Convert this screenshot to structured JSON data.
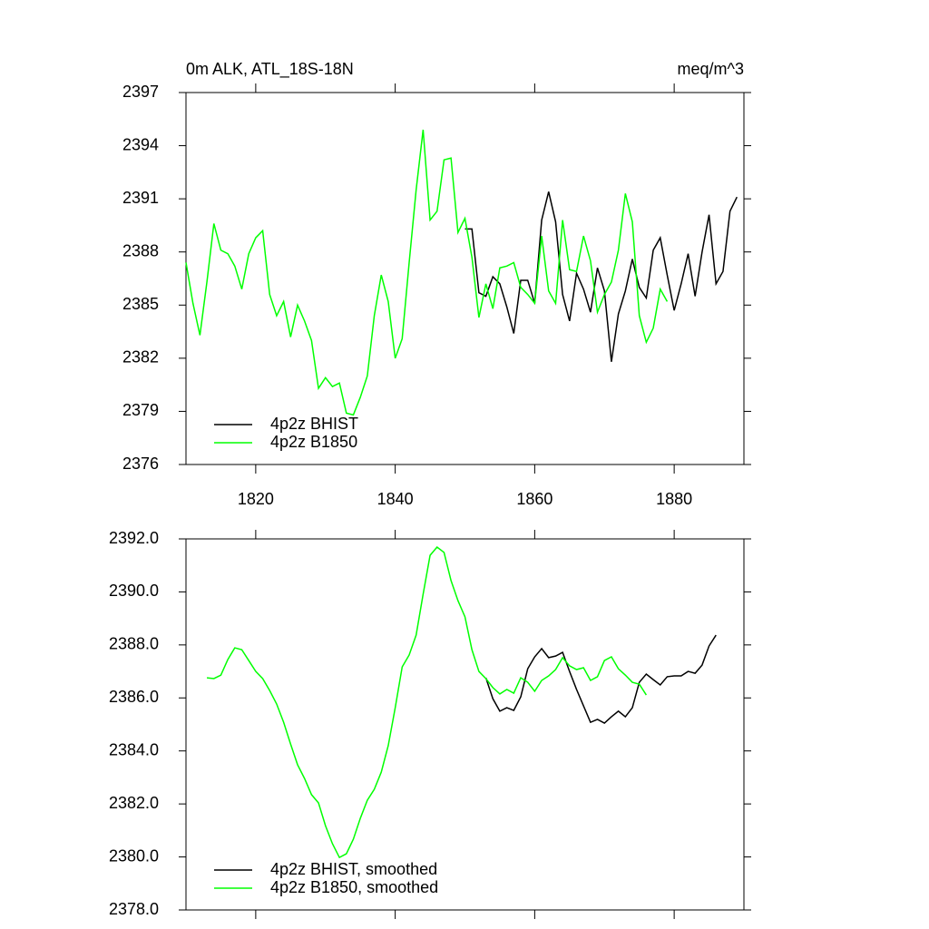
{
  "chart_data": [
    {
      "type": "line",
      "title": "0m ALK, ATL_18S-18N",
      "units_label": "meq/m^3",
      "xlim": [
        1810,
        1890
      ],
      "xticks": [
        1820,
        1840,
        1860,
        1880
      ],
      "ylim": [
        2376,
        2397
      ],
      "yticks": [
        2376,
        2379,
        2382,
        2385,
        2388,
        2391,
        2394,
        2397
      ],
      "series": [
        {
          "name": "4p2z BHIST",
          "color": "#000000",
          "x": [
            1850,
            1851,
            1852,
            1853,
            1854,
            1855,
            1856,
            1857,
            1858,
            1859,
            1860,
            1861,
            1862,
            1863,
            1864,
            1865,
            1866,
            1867,
            1868,
            1869,
            1870,
            1871,
            1872,
            1873,
            1874,
            1875,
            1876,
            1877,
            1878,
            1879,
            1880,
            1881,
            1882,
            1883,
            1884,
            1885,
            1886,
            1887,
            1888,
            1889
          ],
          "values": [
            2389.3,
            2389.3,
            2385.7,
            2385.5,
            2386.6,
            2386.2,
            2384.9,
            2383.4,
            2386.4,
            2386.4,
            2385.1,
            2389.8,
            2391.4,
            2389.7,
            2385.6,
            2384.1,
            2386.8,
            2385.9,
            2384.6,
            2387.1,
            2385.8,
            2381.8,
            2384.5,
            2385.8,
            2387.6,
            2386.0,
            2385.4,
            2388.1,
            2388.8,
            2386.7,
            2384.7,
            2386.2,
            2387.9,
            2385.5,
            2388.0,
            2390.1,
            2386.2,
            2386.9,
            2390.3,
            2391.1
          ]
        },
        {
          "name": "4p2z B1850",
          "color": "#00ff00",
          "x": [
            1810,
            1811,
            1812,
            1813,
            1814,
            1815,
            1816,
            1817,
            1818,
            1819,
            1820,
            1821,
            1822,
            1823,
            1824,
            1825,
            1826,
            1827,
            1828,
            1829,
            1830,
            1831,
            1832,
            1833,
            1834,
            1835,
            1836,
            1837,
            1838,
            1839,
            1840,
            1841,
            1842,
            1843,
            1844,
            1845,
            1846,
            1847,
            1848,
            1849,
            1850,
            1851,
            1852,
            1853,
            1854,
            1855,
            1856,
            1857,
            1858,
            1859,
            1860,
            1861,
            1862,
            1863,
            1864,
            1865,
            1866,
            1867,
            1868,
            1869,
            1870,
            1871,
            1872,
            1873,
            1874,
            1875,
            1876,
            1877,
            1878,
            1879
          ],
          "values": [
            2387.4,
            2385.1,
            2383.3,
            2386.3,
            2389.6,
            2388.1,
            2387.9,
            2387.2,
            2385.9,
            2387.9,
            2388.8,
            2389.2,
            2385.6,
            2384.4,
            2385.2,
            2383.2,
            2385.0,
            2384.1,
            2383.0,
            2380.3,
            2380.9,
            2380.4,
            2380.6,
            2378.9,
            2378.8,
            2379.8,
            2381.0,
            2384.4,
            2386.7,
            2385.2,
            2382.0,
            2383.1,
            2387.4,
            2391.5,
            2394.9,
            2389.8,
            2390.3,
            2393.2,
            2393.3,
            2389.1,
            2389.9,
            2387.7,
            2384.3,
            2386.2,
            2384.8,
            2387.1,
            2387.2,
            2387.4,
            2386.0,
            2385.6,
            2385.1,
            2388.9,
            2385.8,
            2385.1,
            2389.8,
            2387.0,
            2386.9,
            2388.9,
            2387.5,
            2384.6,
            2385.6,
            2386.3,
            2388.1,
            2391.3,
            2389.7,
            2384.4,
            2382.9,
            2383.7,
            2385.9,
            2385.2
          ]
        }
      ]
    },
    {
      "type": "line",
      "xlim": [
        1810,
        1890
      ],
      "ylim": [
        2378,
        2392
      ],
      "yticks": [
        {
          "value": 2378,
          "label": "2378.0"
        },
        {
          "value": 2380,
          "label": "2380.0"
        },
        {
          "value": 2382,
          "label": "2382.0"
        },
        {
          "value": 2384,
          "label": "2384.0"
        },
        {
          "value": 2386,
          "label": "2386.0"
        },
        {
          "value": 2388,
          "label": "2388.0"
        },
        {
          "value": 2390,
          "label": "2390.0"
        },
        {
          "value": 2392,
          "label": "2392.0"
        }
      ],
      "series": [
        {
          "name": "4p2z BHIST, smoothed",
          "color": "#000000",
          "x": [
            1853,
            1854,
            1855,
            1856,
            1857,
            1858,
            1859,
            1860,
            1861,
            1862,
            1863,
            1864,
            1865,
            1866,
            1867,
            1868,
            1869,
            1870,
            1871,
            1872,
            1873,
            1874,
            1875,
            1876,
            1877,
            1878,
            1879,
            1880,
            1881,
            1882,
            1883,
            1884,
            1885,
            1886
          ],
          "values": [
            2386.76,
            2385.97,
            2385.5,
            2385.63,
            2385.53,
            2386.04,
            2387.1,
            2387.55,
            2387.86,
            2387.52,
            2387.58,
            2387.72,
            2387.0,
            2386.32,
            2385.7,
            2385.08,
            2385.19,
            2385.05,
            2385.29,
            2385.5,
            2385.29,
            2385.63,
            2386.59,
            2386.9,
            2386.69,
            2386.49,
            2386.8,
            2386.83,
            2386.83,
            2387.0,
            2386.93,
            2387.24,
            2387.96,
            2388.37
          ]
        },
        {
          "name": "4p2z B1850, smoothed",
          "color": "#00ff00",
          "x": [
            1813,
            1814,
            1815,
            1816,
            1817,
            1818,
            1819,
            1820,
            1821,
            1822,
            1823,
            1824,
            1825,
            1826,
            1827,
            1828,
            1829,
            1830,
            1831,
            1832,
            1833,
            1834,
            1835,
            1836,
            1837,
            1838,
            1839,
            1840,
            1841,
            1842,
            1843,
            1844,
            1845,
            1846,
            1847,
            1848,
            1849,
            1850,
            1851,
            1852,
            1853,
            1854,
            1855,
            1856,
            1857,
            1858,
            1859,
            1860,
            1861,
            1862,
            1863,
            1864,
            1865,
            1866,
            1867,
            1868,
            1869,
            1870,
            1871,
            1872,
            1873,
            1874,
            1875,
            1876
          ],
          "values": [
            2386.76,
            2386.73,
            2386.86,
            2387.45,
            2387.89,
            2387.82,
            2387.41,
            2387.0,
            2386.73,
            2386.28,
            2385.77,
            2385.08,
            2384.26,
            2383.48,
            2382.96,
            2382.35,
            2382.04,
            2381.18,
            2380.5,
            2379.98,
            2380.12,
            2380.67,
            2381.46,
            2382.14,
            2382.55,
            2383.2,
            2384.2,
            2385.63,
            2387.17,
            2387.62,
            2388.37,
            2389.91,
            2391.38,
            2391.69,
            2391.49,
            2390.43,
            2389.67,
            2389.06,
            2387.82,
            2387.0,
            2386.73,
            2386.39,
            2386.15,
            2386.32,
            2386.18,
            2386.76,
            2386.59,
            2386.25,
            2386.66,
            2386.83,
            2387.07,
            2387.52,
            2387.21,
            2387.07,
            2387.14,
            2386.66,
            2386.8,
            2387.41,
            2387.55,
            2387.1,
            2386.86,
            2386.59,
            2386.52,
            2386.11
          ]
        }
      ]
    }
  ]
}
